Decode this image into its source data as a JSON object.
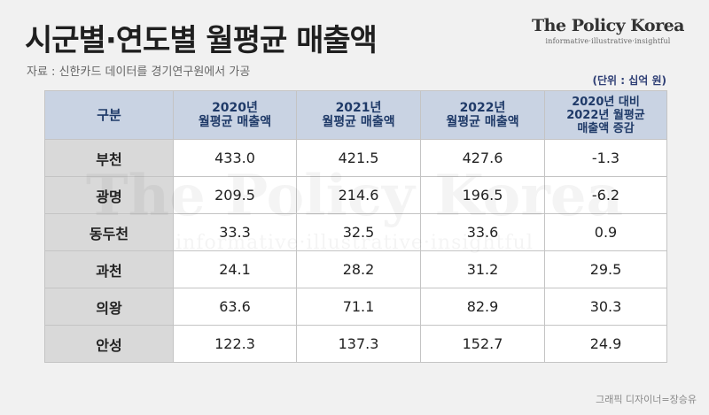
{
  "title": "시군별·연도별 월평균 매출액",
  "source": "자료 : 신한카드 데이터를 경기연구원에서 가공",
  "brand": {
    "name": "The Policy Korea",
    "tagline": "informative·illustrative·insightful"
  },
  "unit": "(단위 : 십억 원)",
  "table": {
    "headers": [
      {
        "lines": [
          "구분"
        ]
      },
      {
        "lines": [
          "2020년",
          "월평균 매출액"
        ]
      },
      {
        "lines": [
          "2021년",
          "월평균 매출액"
        ]
      },
      {
        "lines": [
          "2022년",
          "월평균 매출액"
        ]
      },
      {
        "lines": [
          "2020년 대비",
          "2022년 월평균",
          "매출액 증감"
        ]
      }
    ],
    "rows": [
      {
        "label": "부천",
        "values": [
          "433.0",
          "421.5",
          "427.6",
          "-1.3"
        ]
      },
      {
        "label": "광명",
        "values": [
          "209.5",
          "214.6",
          "196.5",
          "-6.2"
        ]
      },
      {
        "label": "동두천",
        "values": [
          "33.3",
          "32.5",
          "33.6",
          "0.9"
        ]
      },
      {
        "label": "과천",
        "values": [
          "24.1",
          "28.2",
          "31.2",
          "29.5"
        ]
      },
      {
        "label": "의왕",
        "values": [
          "63.6",
          "71.1",
          "82.9",
          "30.3"
        ]
      },
      {
        "label": "안성",
        "values": [
          "122.3",
          "137.3",
          "152.7",
          "24.9"
        ]
      }
    ]
  },
  "credit": "그래픽 디자이너=장승유"
}
